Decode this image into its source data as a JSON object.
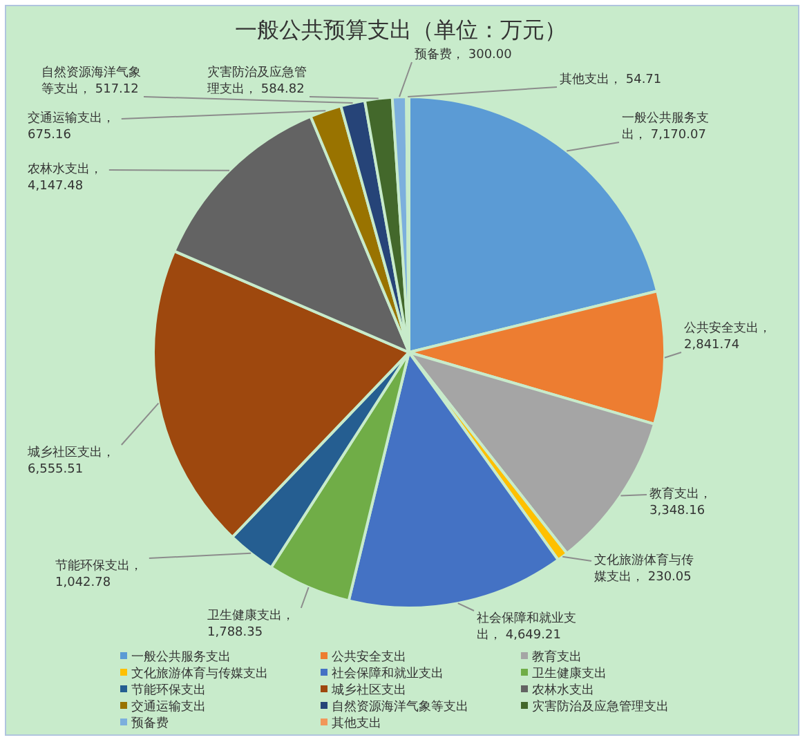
{
  "chart_data": {
    "type": "pie",
    "title": "一般公共预算支出（单位：万元）",
    "categories": [
      "一般公共服务支出",
      "公共安全支出",
      "教育支出",
      "文化旅游体育与传媒支出",
      "社会保障和就业支出",
      "卫生健康支出",
      "节能环保支出",
      "城乡社区支出",
      "农林水支出",
      "交通运输支出",
      "自然资源海洋气象等支出",
      "灾害防治及应急管理支出",
      "预备费",
      "其他支出"
    ],
    "values": [
      7170.07,
      2841.74,
      3348.16,
      230.05,
      4649.21,
      1788.35,
      1042.78,
      6555.51,
      4147.48,
      675.16,
      517.12,
      584.82,
      300.0,
      54.71
    ],
    "value_labels": [
      "一般公共服务支出， 7,170.07",
      "公共安全支出， 2,841.74",
      "教育支出， 3,348.16",
      "文化旅游体育与传媒支出， 230.05",
      "社会保障和就业支出， 4,649.21",
      "卫生健康支出， 1,788.35",
      "节能环保支出， 1,042.78",
      "城乡社区支出， 6,555.51",
      "农林水支出， 4,147.48",
      "交通运输支出， 675.16",
      "自然资源海洋气象等支出， 517.12",
      "灾害防治及应急管理支出， 584.82",
      "预备费， 300.00",
      "其他支出， 54.71"
    ],
    "colors": [
      "#5b9bd5",
      "#ed7d31",
      "#a5a5a5",
      "#ffc000",
      "#4472c4",
      "#70ad47",
      "#255e91",
      "#9e480e",
      "#636363",
      "#997300",
      "#264478",
      "#43682b",
      "#7cafdd",
      "#f1975a"
    ],
    "legend": "bottom"
  }
}
